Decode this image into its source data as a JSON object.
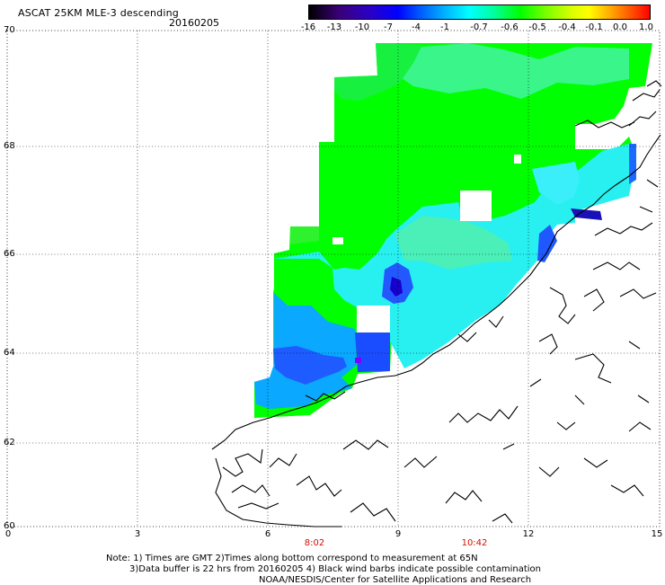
{
  "header": {
    "title": "ASCAT 25KM MLE-3 descending",
    "date": "20160205"
  },
  "colorbar": {
    "labels": [
      "-16",
      "-13",
      "-10",
      "-7",
      "-4",
      "-1",
      "-0.7",
      "-0.6",
      "-0.5",
      "-0.4",
      "-0.1",
      "0.0",
      "1.0"
    ],
    "colors": [
      "#000000",
      "#3a007a",
      "#2a00c8",
      "#0000ff",
      "#0060ff",
      "#00b4ff",
      "#00ffff",
      "#00ffa0",
      "#00ff00",
      "#80ff00",
      "#d8ff00",
      "#ffff00",
      "#ffb000",
      "#ff5a00",
      "#ff0000"
    ]
  },
  "axes": {
    "y_ticks": [
      "70",
      "68",
      "66",
      "64",
      "62",
      "60"
    ],
    "x_ticks": [
      "0",
      "3",
      "6",
      "9",
      "12",
      "15"
    ],
    "x_times": [
      "8:02",
      "10:42"
    ]
  },
  "map": {
    "lat_range": [
      60,
      70
    ],
    "lon_range": [
      0,
      15
    ],
    "grid": "dotted",
    "coastline": "black outline (Norway)"
  },
  "notes": {
    "line1": "Note: 1) Times are GMT 2)Times along bottom correspond to measurement at 65N",
    "line2": "3)Data buffer is 22 hrs from 20160205 4) Black wind barbs indicate possible contamination",
    "line3": "NOAA/NESDIS/Center for Satellite Applications and Research"
  }
}
